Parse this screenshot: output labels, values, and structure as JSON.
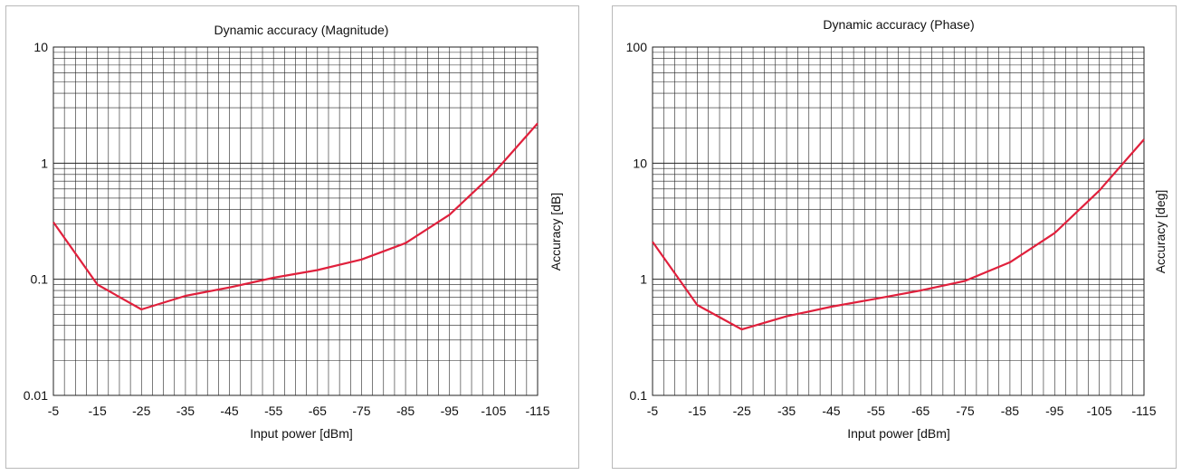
{
  "chart_data": [
    {
      "type": "line",
      "title": "Dynamic accuracy (Magnitude)",
      "xlabel": "Input power [dBm]",
      "ylabel": "Accuracy [dB]",
      "y_scale": "log",
      "ylim": [
        0.01,
        10
      ],
      "yticks": [
        "0.01",
        "0.1",
        "1",
        "10"
      ],
      "xlim": [
        -5,
        -115
      ],
      "xticks": [
        "-5",
        "-15",
        "-25",
        "-35",
        "-45",
        "-55",
        "-65",
        "-75",
        "-85",
        "-95",
        "-105",
        "-115"
      ],
      "grid": true,
      "line_color": "#e0203c",
      "series": [
        {
          "x": [
            -5,
            -15,
            -25,
            -35,
            -45,
            -55,
            -65,
            -75,
            -85,
            -95,
            -105,
            -115
          ],
          "values": [
            0.31,
            0.09,
            0.055,
            0.072,
            0.085,
            0.103,
            0.12,
            0.148,
            0.205,
            0.36,
            0.82,
            2.2
          ]
        }
      ]
    },
    {
      "type": "line",
      "title": "Dynamic accuracy (Phase)",
      "xlabel": "Input power [dBm]",
      "ylabel": "Accuracy [deg]",
      "y_scale": "log",
      "ylim": [
        0.1,
        100
      ],
      "yticks": [
        "0.1",
        "1",
        "10",
        "100"
      ],
      "xlim": [
        -5,
        -115
      ],
      "xticks": [
        "-5",
        "-15",
        "-25",
        "-35",
        "-45",
        "-55",
        "-65",
        "-75",
        "-85",
        "-95",
        "-105",
        "-115"
      ],
      "grid": true,
      "line_color": "#e0203c",
      "series": [
        {
          "x": [
            -5,
            -15,
            -25,
            -35,
            -45,
            -55,
            -65,
            -75,
            -85,
            -95,
            -105,
            -115
          ],
          "values": [
            2.1,
            0.6,
            0.37,
            0.48,
            0.58,
            0.68,
            0.8,
            0.97,
            1.4,
            2.5,
            5.8,
            16
          ]
        }
      ]
    }
  ]
}
